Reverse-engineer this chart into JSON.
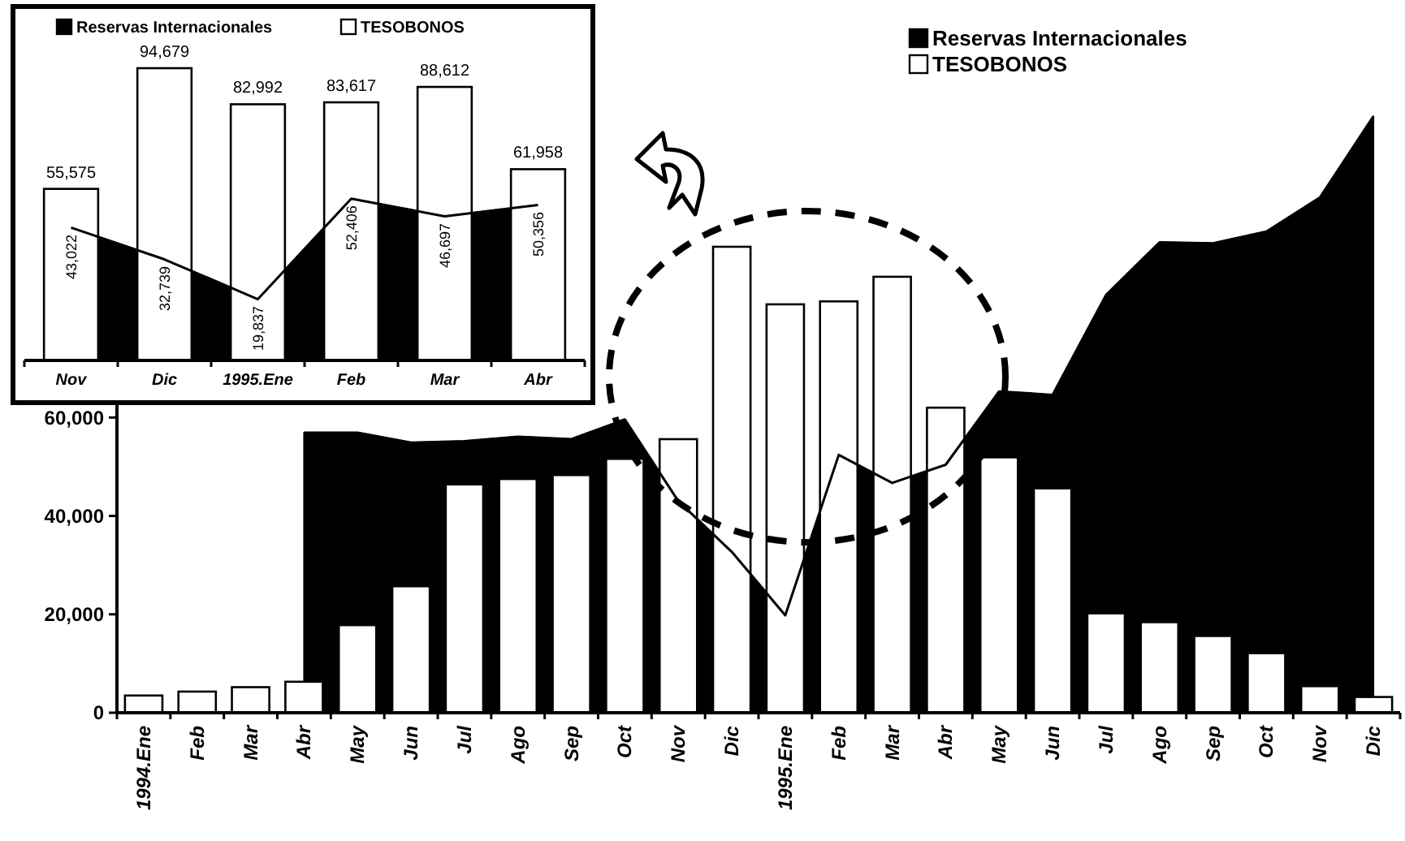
{
  "chart_data": [
    {
      "type": "bar",
      "categories": [
        "1994.Ene",
        "Feb",
        "Mar",
        "Abr",
        "May",
        "Jun",
        "Jul",
        "Ago",
        "Sep",
        "Oct",
        "Nov",
        "Dic",
        "1995.Ene",
        "Feb",
        "Mar",
        "Abr",
        "May",
        "Jun",
        "Jul",
        "Ago",
        "Sep",
        "Oct",
        "Nov",
        "Dic"
      ],
      "series": [
        {
          "name": "Reservas Internacionales",
          "type": "area",
          "color": "#000000",
          "values": [
            null,
            null,
            null,
            56900,
            56900,
            54900,
            55200,
            56100,
            55600,
            59600,
            43000,
            32700,
            19800,
            52400,
            46700,
            50400,
            65300,
            64600,
            84900,
            95600,
            95400,
            97800,
            104700,
            121200
          ]
        },
        {
          "name": "TESOBONOS",
          "type": "bar",
          "color": "#ffffff",
          "values": [
            3500,
            4300,
            5200,
            6300,
            17800,
            25700,
            46400,
            47500,
            48300,
            51600,
            55600,
            94700,
            83000,
            83600,
            88600,
            62000,
            51900,
            45600,
            20200,
            18400,
            15600,
            12100,
            5400,
            3200
          ]
        }
      ],
      "ylim": [
        0,
        130000
      ],
      "yticks": [
        0,
        {
          "value": 20000,
          "label": "20,000"
        },
        {
          "value": 40000,
          "label": "40,000"
        },
        {
          "value": 60000,
          "label": "60,000"
        }
      ],
      "legend": "top"
    },
    {
      "type": "bar",
      "categories": [
        "Nov",
        "Dic",
        "1995.Ene",
        "Feb",
        "Mar",
        "Abr"
      ],
      "series": [
        {
          "name": "Reservas Internacionales",
          "type": "area",
          "color": "#000000",
          "values": [
            43022,
            32739,
            19837,
            52406,
            46697,
            50356
          ],
          "value_labels": [
            "43,022",
            "32,739",
            "19,837",
            "52,406",
            "46,697",
            "50,356"
          ]
        },
        {
          "name": "TESOBONOS",
          "type": "bar",
          "color": "#ffffff",
          "values": [
            55575,
            94679,
            82992,
            83617,
            88612,
            61958
          ],
          "value_labels": [
            "55,575",
            "94,679",
            "82,992",
            "83,617",
            "88,612",
            "61,958"
          ]
        }
      ],
      "legend": "top"
    }
  ]
}
